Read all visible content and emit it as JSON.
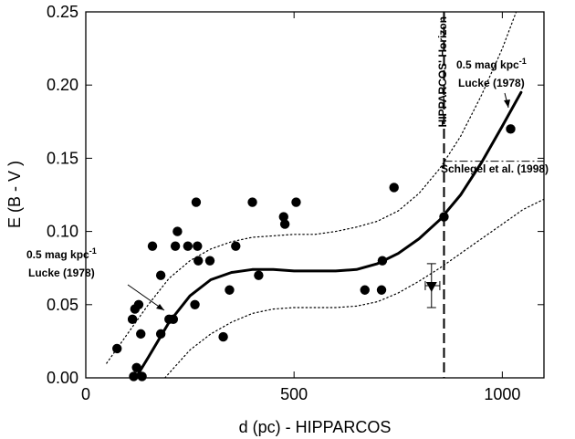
{
  "chart_data": {
    "type": "scatter",
    "xlabel": "d (pc) - HIPPARCOS",
    "ylabel": "E (B - V )",
    "xlim": [
      0,
      1100
    ],
    "ylim": [
      0,
      0.25
    ],
    "x_ticks": [
      0,
      500,
      1000
    ],
    "x_tick_labels": [
      "0",
      "500",
      "1000"
    ],
    "y_ticks": [
      0,
      0.05,
      0.1,
      0.15,
      0.2,
      0.25
    ],
    "y_tick_labels": [
      "0.00",
      "0.05",
      "0.10",
      "0.15",
      "0.20",
      "0.25"
    ],
    "grid": false,
    "horizon": {
      "x": 860,
      "label": "HIPPARCOS' Horizon"
    },
    "schlegel": {
      "y": 0.148,
      "x_start": 860,
      "label": "Schlegel et al. (1998)"
    },
    "annotations": {
      "lucke_left": {
        "line1": "0.5 mag kpc",
        "sup": "-1",
        "line2": "Lucke (1978)"
      },
      "lucke_right": {
        "line1": "0.5 mag kpc",
        "sup": "-1",
        "line2": "Lucke (1978)"
      }
    },
    "series": [
      {
        "type": "scatter",
        "points": [
          [
            75,
            0.02
          ],
          [
            112,
            0.04
          ],
          [
            115,
            0.001
          ],
          [
            118,
            0.047
          ],
          [
            122,
            0.007
          ],
          [
            127,
            0.05
          ],
          [
            132,
            0.03
          ],
          [
            135,
            0.001
          ],
          [
            160,
            0.09
          ],
          [
            180,
            0.07
          ],
          [
            180,
            0.03
          ],
          [
            200,
            0.04
          ],
          [
            210,
            0.04
          ],
          [
            215,
            0.09
          ],
          [
            220,
            0.1
          ],
          [
            245,
            0.09
          ],
          [
            262,
            0.05
          ],
          [
            265,
            0.12
          ],
          [
            268,
            0.09
          ],
          [
            270,
            0.08
          ],
          [
            298,
            0.08
          ],
          [
            330,
            0.028
          ],
          [
            345,
            0.06
          ],
          [
            360,
            0.09
          ],
          [
            400,
            0.12
          ],
          [
            415,
            0.07
          ],
          [
            475,
            0.11
          ],
          [
            478,
            0.105
          ],
          [
            505,
            0.12
          ],
          [
            670,
            0.06
          ],
          [
            710,
            0.06
          ],
          [
            712,
            0.08
          ],
          [
            740,
            0.13
          ],
          [
            860,
            0.11
          ],
          [
            1020,
            0.17
          ]
        ]
      },
      {
        "type": "line",
        "style": "solid-bold",
        "points": [
          [
            120,
            0.0
          ],
          [
            150,
            0.014
          ],
          [
            200,
            0.038
          ],
          [
            250,
            0.056
          ],
          [
            300,
            0.067
          ],
          [
            350,
            0.072
          ],
          [
            400,
            0.074
          ],
          [
            450,
            0.074
          ],
          [
            500,
            0.073
          ],
          [
            550,
            0.073
          ],
          [
            600,
            0.073
          ],
          [
            650,
            0.074
          ],
          [
            700,
            0.078
          ],
          [
            750,
            0.085
          ],
          [
            800,
            0.095
          ],
          [
            850,
            0.108
          ],
          [
            900,
            0.125
          ],
          [
            950,
            0.147
          ],
          [
            1000,
            0.172
          ],
          [
            1045,
            0.195
          ]
        ]
      },
      {
        "type": "line",
        "style": "dotted",
        "points": [
          [
            50,
            0.01
          ],
          [
            100,
            0.03
          ],
          [
            150,
            0.05
          ],
          [
            200,
            0.068
          ],
          [
            250,
            0.08
          ],
          [
            300,
            0.088
          ],
          [
            350,
            0.093
          ],
          [
            400,
            0.096
          ],
          [
            450,
            0.097
          ],
          [
            500,
            0.098
          ],
          [
            550,
            0.098
          ],
          [
            600,
            0.1
          ],
          [
            650,
            0.103
          ],
          [
            700,
            0.107
          ],
          [
            750,
            0.114
          ],
          [
            800,
            0.126
          ],
          [
            850,
            0.143
          ],
          [
            900,
            0.165
          ],
          [
            950,
            0.193
          ],
          [
            1000,
            0.225
          ],
          [
            1040,
            0.255
          ]
        ]
      },
      {
        "type": "line",
        "style": "dotted",
        "points": [
          [
            190,
            0.0
          ],
          [
            250,
            0.019
          ],
          [
            300,
            0.03
          ],
          [
            350,
            0.038
          ],
          [
            400,
            0.044
          ],
          [
            450,
            0.047
          ],
          [
            500,
            0.048
          ],
          [
            550,
            0.048
          ],
          [
            600,
            0.048
          ],
          [
            650,
            0.049
          ],
          [
            700,
            0.052
          ],
          [
            750,
            0.058
          ],
          [
            800,
            0.066
          ],
          [
            850,
            0.075
          ],
          [
            900,
            0.085
          ],
          [
            950,
            0.095
          ],
          [
            1000,
            0.105
          ],
          [
            1050,
            0.115
          ],
          [
            1100,
            0.122
          ]
        ]
      },
      {
        "type": "marker",
        "shape": "triangle-down",
        "point": [
          830,
          0.063
        ],
        "yerr": [
          0.048,
          0.078
        ],
        "xerr": [
          815,
          850
        ]
      }
    ]
  }
}
